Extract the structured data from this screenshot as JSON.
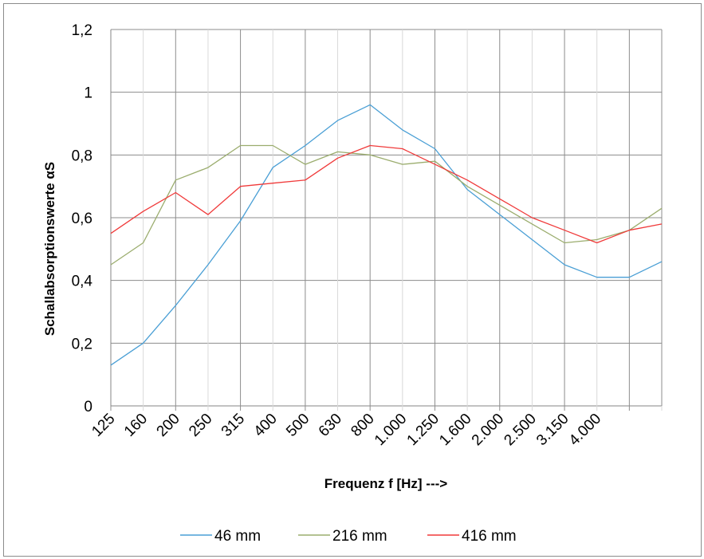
{
  "chart_data": {
    "type": "line",
    "xlabel": "Frequenz f  [Hz]   --->",
    "ylabel": "Schallabsorptionswerte  αS",
    "ylim": [
      0,
      1.2
    ],
    "yticks": [
      "0",
      "0,2",
      "0,4",
      "0,6",
      "0,8",
      "1",
      "1,2"
    ],
    "categories": [
      "125",
      "160",
      "200",
      "250",
      "315",
      "400",
      "500",
      "630",
      "800",
      "1.000",
      "1.250",
      "1.600",
      "2.000",
      "2.500",
      "3.150",
      "4.000",
      "",
      ""
    ],
    "grid": true,
    "legend_position": "bottom",
    "series": [
      {
        "name": "46 mm",
        "color": "#4a9fd5",
        "values": [
          0.13,
          0.2,
          0.32,
          0.45,
          0.59,
          0.76,
          0.83,
          0.91,
          0.96,
          0.88,
          0.82,
          0.69,
          0.61,
          0.53,
          0.45,
          0.41,
          0.41,
          0.46
        ]
      },
      {
        "name": "216 mm",
        "color": "#9bad6e",
        "values": [
          0.45,
          0.52,
          0.72,
          0.76,
          0.83,
          0.83,
          0.77,
          0.81,
          0.8,
          0.77,
          0.78,
          0.7,
          0.64,
          0.58,
          0.52,
          0.53,
          0.56,
          0.63
        ]
      },
      {
        "name": "416 mm",
        "color": "#f03a3a",
        "values": [
          0.55,
          0.62,
          0.68,
          0.61,
          0.7,
          0.71,
          0.72,
          0.79,
          0.83,
          0.82,
          0.77,
          0.72,
          0.66,
          0.6,
          0.56,
          0.52,
          0.56,
          0.58
        ]
      }
    ]
  }
}
